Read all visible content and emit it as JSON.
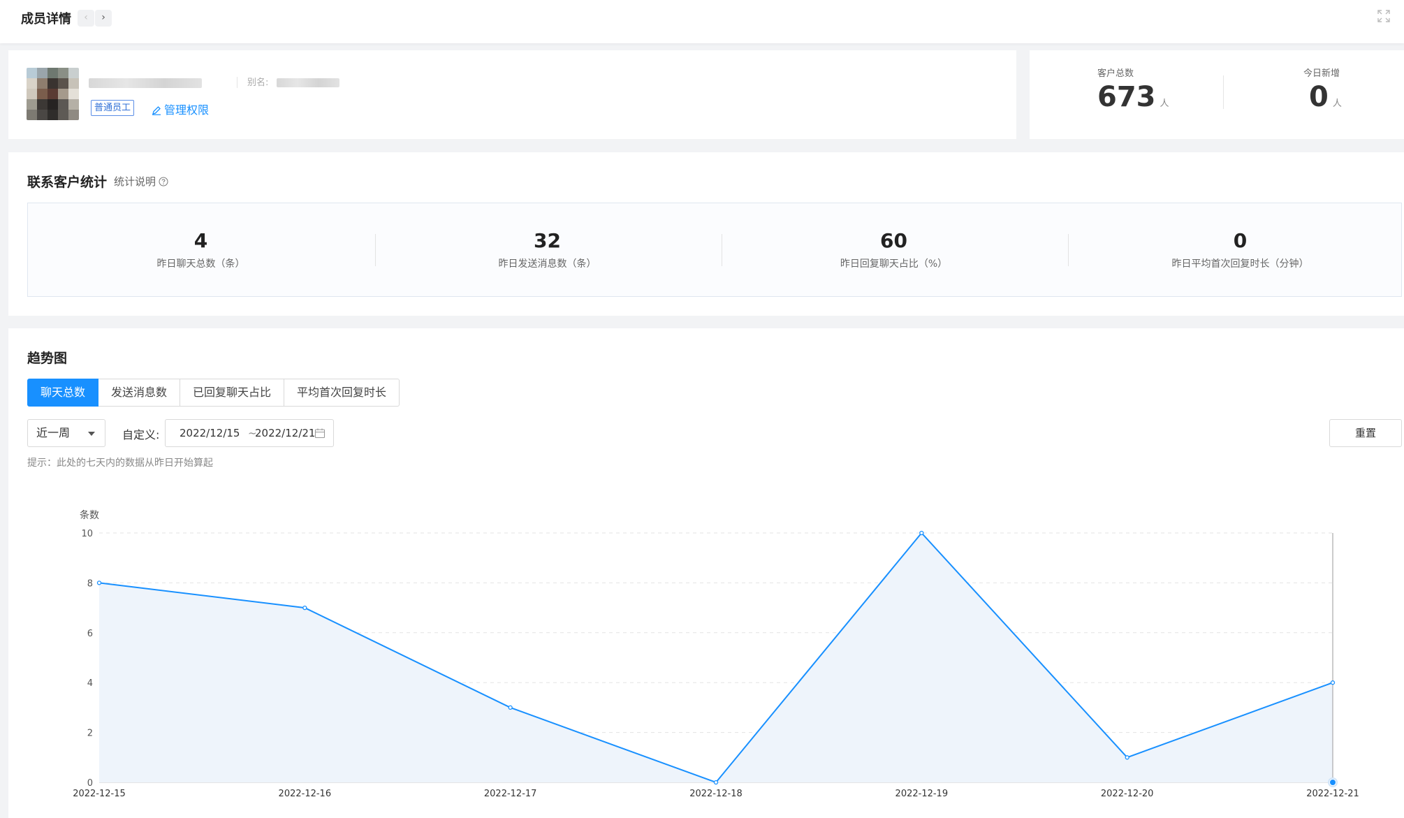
{
  "header": {
    "title": "成员详情",
    "prev_icon": "‹",
    "next_icon": "›"
  },
  "profile": {
    "alias_label": "别名:",
    "role_tag": "普通员工",
    "manage_label": "管理权限"
  },
  "summary": {
    "total_customers_label": "客户总数",
    "total_customers_value": "673",
    "today_new_label": "今日新增",
    "today_new_value": "0",
    "unit": "人"
  },
  "contact_stats": {
    "title": "联系客户统计",
    "help_label": "统计说明",
    "metrics": [
      {
        "value": "4",
        "label": "昨日聊天总数（条）"
      },
      {
        "value": "32",
        "label": "昨日发送消息数（条）"
      },
      {
        "value": "60",
        "label": "昨日回复聊天占比（%）"
      },
      {
        "value": "0",
        "label": "昨日平均首次回复时长（分钟）"
      }
    ]
  },
  "trend": {
    "title": "趋势图",
    "tabs": [
      {
        "label": "聊天总数",
        "active": true
      },
      {
        "label": "发送消息数",
        "active": false
      },
      {
        "label": "已回复聊天占比",
        "active": false
      },
      {
        "label": "平均首次回复时长",
        "active": false
      }
    ],
    "period_select": "近一周",
    "custom_label": "自定义:",
    "date_start": "2022/12/15",
    "date_sep": "~",
    "date_end": "2022/12/21",
    "reset_label": "重置",
    "hint": "提示：此处的七天内的数据从昨日开始算起"
  },
  "chart_data": {
    "type": "area",
    "ylabel": "条数",
    "ylim": [
      0,
      10
    ],
    "yticks": [
      0,
      2,
      4,
      6,
      8,
      10
    ],
    "categories": [
      "2022-12-15",
      "2022-12-16",
      "2022-12-17",
      "2022-12-18",
      "2022-12-19",
      "2022-12-20",
      "2022-12-21"
    ],
    "values": [
      8,
      7,
      3,
      0,
      10,
      1,
      4
    ],
    "grid": true,
    "line_color": "#1890ff",
    "fill_color": "#eef4fb",
    "hover_index": 6
  }
}
